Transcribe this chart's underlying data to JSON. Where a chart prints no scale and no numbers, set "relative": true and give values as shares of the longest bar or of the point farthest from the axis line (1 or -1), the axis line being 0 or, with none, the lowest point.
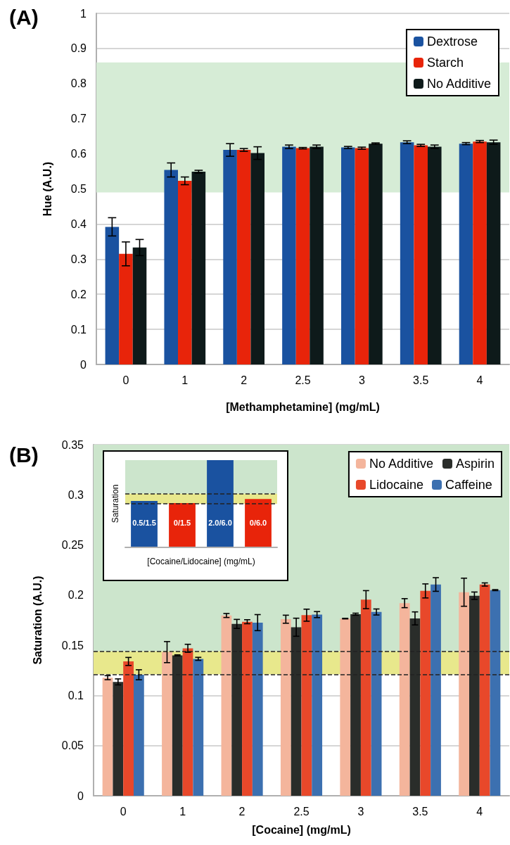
{
  "chart_data": [
    {
      "type": "bar",
      "title": "(A)",
      "xlabel": "[Methamphetamine] (mg/mL)",
      "ylabel": "Hue (A.U.)",
      "categories": [
        "0",
        "1",
        "2",
        "2.5",
        "3",
        "3.5",
        "4"
      ],
      "series": [
        {
          "name": "Dextrose",
          "color": "#1a52a0",
          "values": [
            0.392,
            0.554,
            0.611,
            0.62,
            0.618,
            0.633,
            0.629
          ],
          "errors": [
            0.026,
            0.02,
            0.018,
            0.005,
            0.003,
            0.004,
            0.003
          ]
        },
        {
          "name": "Starch",
          "color": "#e8240a",
          "values": [
            0.315,
            0.523,
            0.611,
            0.616,
            0.616,
            0.624,
            0.635
          ],
          "errors": [
            0.034,
            0.011,
            0.004,
            0.002,
            0.003,
            0.003,
            0.003
          ]
        },
        {
          "name": "No Additive",
          "color": "#0e1a1a",
          "values": [
            0.333,
            0.549,
            0.602,
            0.62,
            0.629,
            0.62,
            0.633
          ],
          "errors": [
            0.023,
            0.004,
            0.018,
            0.005,
            0.002,
            0.005,
            0.006
          ]
        }
      ],
      "ylim": [
        0,
        1
      ],
      "yticks": [
        0,
        0.1,
        0.2,
        0.3,
        0.4,
        0.5,
        0.6,
        0.7,
        0.8,
        0.9,
        1
      ],
      "grid": "y",
      "legend": "top right",
      "bands": [
        {
          "axis": "y",
          "from": 0.49,
          "to": 0.86,
          "color": "#d6ecd6"
        }
      ]
    },
    {
      "type": "bar",
      "title": "(B)",
      "xlabel": "[Cocaine] (mg/mL)",
      "ylabel": "Saturation (A.U.)",
      "categories": [
        "0",
        "1",
        "2",
        "2.5",
        "3",
        "3.5",
        "4"
      ],
      "series": [
        {
          "name": "No Additive",
          "color": "#f4b59c",
          "values": [
            0.1177,
            0.1432,
            0.1797,
            0.176,
            0.1766,
            0.192,
            0.2029
          ],
          "errors": [
            0.002,
            0.0105,
            0.002,
            0.004,
            0.0003,
            0.0045,
            0.014
          ]
        },
        {
          "name": "Aspirin",
          "color": "#2a2d2a",
          "values": [
            0.1135,
            0.14,
            0.1713,
            0.168,
            0.181,
            0.1768,
            0.1994
          ],
          "errors": [
            0.003,
            0.0005,
            0.0045,
            0.009,
            0.001,
            0.0065,
            0.0037
          ]
        },
        {
          "name": "Lidocaine",
          "color": "#e8482a",
          "values": [
            0.1339,
            0.147,
            0.1735,
            0.18,
            0.1955,
            0.2042,
            0.2106
          ],
          "errors": [
            0.004,
            0.004,
            0.002,
            0.006,
            0.009,
            0.007,
            0.0016
          ]
        },
        {
          "name": "Caffeine",
          "color": "#3c70b0",
          "values": [
            0.1206,
            0.1365,
            0.1726,
            0.1806,
            0.1832,
            0.2106,
            0.205
          ],
          "errors": [
            0.005,
            0.0015,
            0.008,
            0.003,
            0.003,
            0.0068,
            0.0005
          ]
        }
      ],
      "ylim": [
        0,
        0.35
      ],
      "yticks": [
        0,
        0.05,
        0.1,
        0.15,
        0.2,
        0.25,
        0.3,
        0.35
      ],
      "grid": "y",
      "legend": "top right",
      "bands": [
        {
          "axis": "y",
          "from": 0.144,
          "to": 0.35,
          "color": "#cce5cc"
        },
        {
          "axis": "y",
          "from": 0.121,
          "to": 0.144,
          "color": "#e8e88c"
        }
      ],
      "ref_lines": [
        {
          "axis": "y",
          "value": 0.121,
          "color": "#222222",
          "line_style": "dashed"
        },
        {
          "axis": "y",
          "value": 0.144,
          "color": "#222222",
          "line_style": "dashed"
        }
      ]
    },
    {
      "type": "bar",
      "xlabel": "[Cocaine/Lidocaine] (mg/mL)",
      "ylabel": "Saturation",
      "relative": true,
      "categories": [
        "0.5/1.5",
        "0/1.5",
        "2.0/6.0",
        "0/6.0"
      ],
      "values": [
        0.533,
        0.508,
        1,
        0.554
      ],
      "colors": [
        "#1a52a0",
        "#e8240a",
        "#1a52a0",
        "#e8240a"
      ],
      "bands": [
        {
          "axis": "y",
          "from": 0.615,
          "to": 1.13,
          "color": "#cce5cc"
        },
        {
          "axis": "y",
          "from": 0.5,
          "to": 0.615,
          "color": "#e8e88c"
        }
      ],
      "ref_lines": [
        {
          "axis": "y",
          "value": 0.5,
          "color": "#222222",
          "line_style": "dashed"
        },
        {
          "axis": "y",
          "value": 0.615,
          "color": "#222222",
          "line_style": "dashed"
        }
      ]
    }
  ]
}
